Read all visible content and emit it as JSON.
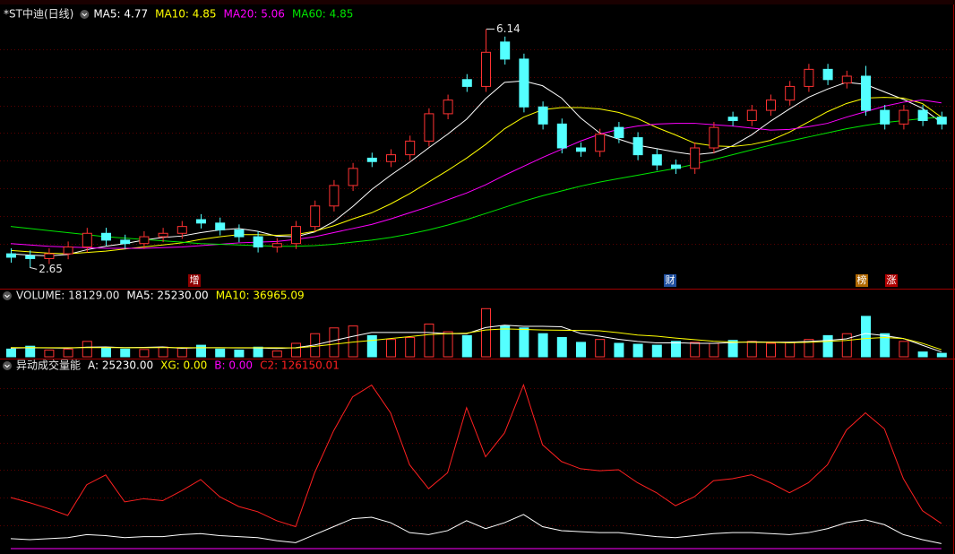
{
  "chart_data": [
    {
      "type": "candlestick",
      "title": "*ST中迪(日线)",
      "up_color": "#ff3232",
      "down_color": "#54ffff",
      "ylim": [
        2.34,
        6.46
      ],
      "open": [
        2.85,
        2.82,
        2.78,
        2.85,
        2.95,
        3.15,
        3.05,
        3.0,
        3.1,
        3.15,
        3.35,
        3.3,
        3.2,
        3.1,
        2.95,
        3.0,
        3.25,
        3.55,
        3.85,
        4.25,
        4.2,
        4.3,
        4.5,
        4.9,
        5.4,
        5.3,
        5.95,
        5.7,
        5.0,
        4.75,
        4.4,
        4.35,
        4.7,
        4.55,
        4.3,
        4.15,
        4.1,
        4.4,
        4.85,
        4.8,
        4.95,
        5.1,
        5.3,
        5.55,
        5.35,
        5.45,
        4.95,
        4.75,
        4.95,
        4.85
      ],
      "high": [
        2.93,
        2.9,
        2.93,
        3.03,
        3.23,
        3.23,
        3.13,
        3.18,
        3.23,
        3.33,
        3.43,
        3.38,
        3.28,
        3.18,
        3.08,
        3.33,
        3.63,
        3.93,
        4.18,
        4.33,
        4.38,
        4.58,
        4.98,
        5.18,
        5.48,
        6.14,
        6.03,
        5.78,
        5.08,
        4.83,
        4.48,
        4.68,
        4.78,
        4.63,
        4.38,
        4.23,
        4.48,
        4.78,
        4.93,
        5.03,
        5.18,
        5.38,
        5.63,
        5.63,
        5.53,
        5.6,
        5.03,
        5.03,
        5.03,
        4.93
      ],
      "low": [
        2.72,
        2.65,
        2.7,
        2.77,
        2.87,
        2.97,
        2.92,
        2.92,
        3.02,
        3.07,
        3.22,
        3.12,
        3.02,
        2.87,
        2.87,
        2.92,
        3.17,
        3.47,
        3.77,
        4.12,
        4.12,
        4.22,
        4.42,
        4.82,
        5.22,
        5.22,
        5.62,
        4.92,
        4.67,
        4.32,
        4.27,
        4.27,
        4.47,
        4.22,
        4.07,
        4.02,
        4.02,
        4.32,
        4.72,
        4.72,
        4.87,
        5.02,
        5.22,
        5.32,
        5.27,
        4.87,
        4.67,
        4.67,
        4.72,
        4.67
      ],
      "close": [
        2.8,
        2.78,
        2.85,
        2.95,
        3.15,
        3.05,
        3.0,
        3.1,
        3.15,
        3.25,
        3.3,
        3.2,
        3.1,
        2.95,
        3.0,
        3.25,
        3.55,
        3.85,
        4.1,
        4.2,
        4.3,
        4.5,
        4.9,
        5.1,
        5.3,
        5.8,
        5.7,
        5.0,
        4.75,
        4.4,
        4.35,
        4.6,
        4.55,
        4.3,
        4.15,
        4.1,
        4.4,
        4.7,
        4.8,
        4.95,
        5.1,
        5.3,
        5.55,
        5.4,
        5.45,
        4.95,
        4.75,
        4.95,
        4.8,
        4.75
      ],
      "series": [
        {
          "name": "MA5: 4.77",
          "color": "#ffffff",
          "values": [
            2.85,
            2.83,
            2.82,
            2.84,
            2.91,
            2.96,
            3.0,
            3.05,
            3.09,
            3.11,
            3.16,
            3.2,
            3.22,
            3.18,
            3.11,
            3.1,
            3.17,
            3.32,
            3.54,
            3.79,
            4.0,
            4.19,
            4.4,
            4.6,
            4.82,
            5.12,
            5.36,
            5.38,
            5.31,
            5.13,
            4.84,
            4.62,
            4.53,
            4.44,
            4.39,
            4.34,
            4.3,
            4.33,
            4.43,
            4.59,
            4.79,
            4.97,
            5.14,
            5.26,
            5.36,
            5.33,
            5.22,
            5.11,
            4.98,
            4.77
          ]
        },
        {
          "name": "MA10: 4.85",
          "color": "#ffff00",
          "values": [
            2.9,
            2.88,
            2.86,
            2.85,
            2.87,
            2.89,
            2.92,
            2.95,
            2.98,
            3.01,
            3.06,
            3.1,
            3.13,
            3.13,
            3.12,
            3.13,
            3.18,
            3.26,
            3.36,
            3.45,
            3.58,
            3.73,
            3.9,
            4.07,
            4.25,
            4.45,
            4.68,
            4.85,
            4.96,
            4.99,
            4.99,
            4.97,
            4.92,
            4.83,
            4.7,
            4.59,
            4.47,
            4.43,
            4.42,
            4.45,
            4.51,
            4.63,
            4.78,
            4.93,
            5.05,
            5.13,
            5.14,
            5.13,
            5.05,
            4.85
          ]
        },
        {
          "name": "MA20: 5.06",
          "color": "#ff00ff",
          "values": [
            3.0,
            2.98,
            2.96,
            2.95,
            2.94,
            2.93,
            2.93,
            2.93,
            2.94,
            2.95,
            2.97,
            2.99,
            3.01,
            3.02,
            3.03,
            3.06,
            3.1,
            3.16,
            3.22,
            3.28,
            3.36,
            3.45,
            3.54,
            3.64,
            3.74,
            3.86,
            4.0,
            4.13,
            4.26,
            4.38,
            4.5,
            4.6,
            4.67,
            4.72,
            4.75,
            4.76,
            4.76,
            4.74,
            4.72,
            4.69,
            4.66,
            4.67,
            4.71,
            4.76,
            4.85,
            4.93,
            5.01,
            5.07,
            5.1,
            5.06
          ]
        },
        {
          "name": "MA60: 4.85",
          "color": "#00e600",
          "values": [
            3.25,
            3.22,
            3.19,
            3.16,
            3.13,
            3.1,
            3.08,
            3.06,
            3.04,
            3.02,
            3.0,
            2.99,
            2.98,
            2.97,
            2.96,
            2.96,
            2.97,
            2.99,
            3.02,
            3.05,
            3.09,
            3.14,
            3.2,
            3.27,
            3.35,
            3.44,
            3.53,
            3.62,
            3.7,
            3.77,
            3.84,
            3.9,
            3.95,
            4.0,
            4.05,
            4.1,
            4.16,
            4.23,
            4.3,
            4.37,
            4.44,
            4.5,
            4.56,
            4.62,
            4.68,
            4.73,
            4.77,
            4.8,
            4.83,
            4.85
          ]
        }
      ],
      "annotations": [
        "增",
        "财",
        "榜",
        "涨"
      ]
    },
    {
      "type": "bar",
      "title": "VOLUME: 18129.00",
      "ylim": [
        0,
        270000
      ],
      "values": [
        40000,
        55000,
        35000,
        40000,
        80000,
        45000,
        40000,
        38000,
        50000,
        45000,
        60000,
        40000,
        35000,
        50000,
        30000,
        70000,
        120000,
        150000,
        160000,
        110000,
        90000,
        100000,
        170000,
        130000,
        110000,
        250000,
        160000,
        150000,
        120000,
        100000,
        75000,
        90000,
        70000,
        65000,
        60000,
        80000,
        75000,
        70000,
        85000,
        80000,
        70000,
        75000,
        90000,
        110000,
        120000,
        210000,
        120000,
        80000,
        25000,
        18129
      ],
      "series": [
        {
          "name": "MA5: 25230.00",
          "color": "#ffffff",
          "values": [
            45000,
            47000,
            46000,
            45000,
            50000,
            51000,
            48000,
            49000,
            51000,
            44000,
            47000,
            47000,
            46000,
            46000,
            43000,
            47000,
            61000,
            84000,
            106000,
            126000,
            126000,
            126000,
            126000,
            120000,
            120000,
            152000,
            164000,
            158000,
            158000,
            156000,
            121000,
            107000,
            91000,
            80000,
            72000,
            73000,
            70000,
            70000,
            74000,
            78000,
            76000,
            76000,
            80000,
            85000,
            93000,
            121000,
            110000,
            95000,
            60000,
            25230
          ]
        },
        {
          "name": "MA10: 36965.09",
          "color": "#ffff00",
          "values": [
            48000,
            48000,
            47000,
            47000,
            48000,
            48000,
            47000,
            47000,
            48000,
            48000,
            47000,
            47000,
            47000,
            47000,
            47000,
            46000,
            54000,
            65000,
            76000,
            85000,
            95000,
            105000,
            115000,
            120000,
            123000,
            139000,
            145000,
            142000,
            139000,
            138000,
            137000,
            135000,
            125000,
            113000,
            107000,
            97000,
            89000,
            81000,
            77000,
            75000,
            75000,
            73000,
            75000,
            80000,
            85000,
            95000,
            100000,
            95000,
            70000,
            36965.09
          ]
        }
      ]
    },
    {
      "type": "line",
      "title": "异动成交量能",
      "ylim": [
        0,
        880000
      ],
      "series": [
        {
          "name": "A: 25230.00",
          "color": "#ffffff",
          "values": [
            50000,
            45000,
            50000,
            55000,
            70000,
            65000,
            55000,
            60000,
            60000,
            70000,
            75000,
            65000,
            60000,
            55000,
            40000,
            30000,
            70000,
            110000,
            150000,
            157000,
            130000,
            80000,
            70000,
            90000,
            140000,
            100000,
            130000,
            171000,
            110000,
            90000,
            85000,
            80000,
            80000,
            70000,
            60000,
            55000,
            65000,
            75000,
            80000,
            80000,
            75000,
            70000,
            80000,
            100000,
            130000,
            144000,
            120000,
            70000,
            45000,
            25230
          ]
        },
        {
          "name": "XG: 0.00",
          "color": "#ffff00"
        },
        {
          "name": "B: 0.00",
          "color": "#ff00ff",
          "values": [
            0,
            0,
            0,
            0,
            0,
            0,
            0,
            0,
            0,
            0,
            0,
            0,
            0,
            0,
            0,
            0,
            0,
            0,
            0,
            0,
            0,
            0,
            0,
            0,
            0,
            0,
            0,
            0,
            0,
            0,
            0,
            0,
            0,
            0,
            0,
            0,
            0,
            0,
            0,
            0,
            0,
            0,
            0,
            0,
            0,
            0,
            0,
            0,
            0,
            0
          ]
        },
        {
          "name": "C2: 126150.01",
          "color": "#ff2020",
          "values": [
            256000,
            230000,
            200000,
            166000,
            320000,
            369000,
            234000,
            250000,
            240000,
            290000,
            346000,
            260000,
            211000,
            185000,
            140000,
            110000,
            380000,
            590000,
            760000,
            819000,
            680000,
            420000,
            300000,
            380000,
            706000,
            460000,
            580000,
            820000,
            520000,
            436000,
            400000,
            390000,
            395000,
            330000,
            280000,
            215000,
            260000,
            340000,
            350000,
            370000,
            330000,
            280000,
            330000,
            420000,
            594000,
            680000,
            600000,
            350000,
            190000,
            126150.01
          ]
        }
      ]
    }
  ]
}
